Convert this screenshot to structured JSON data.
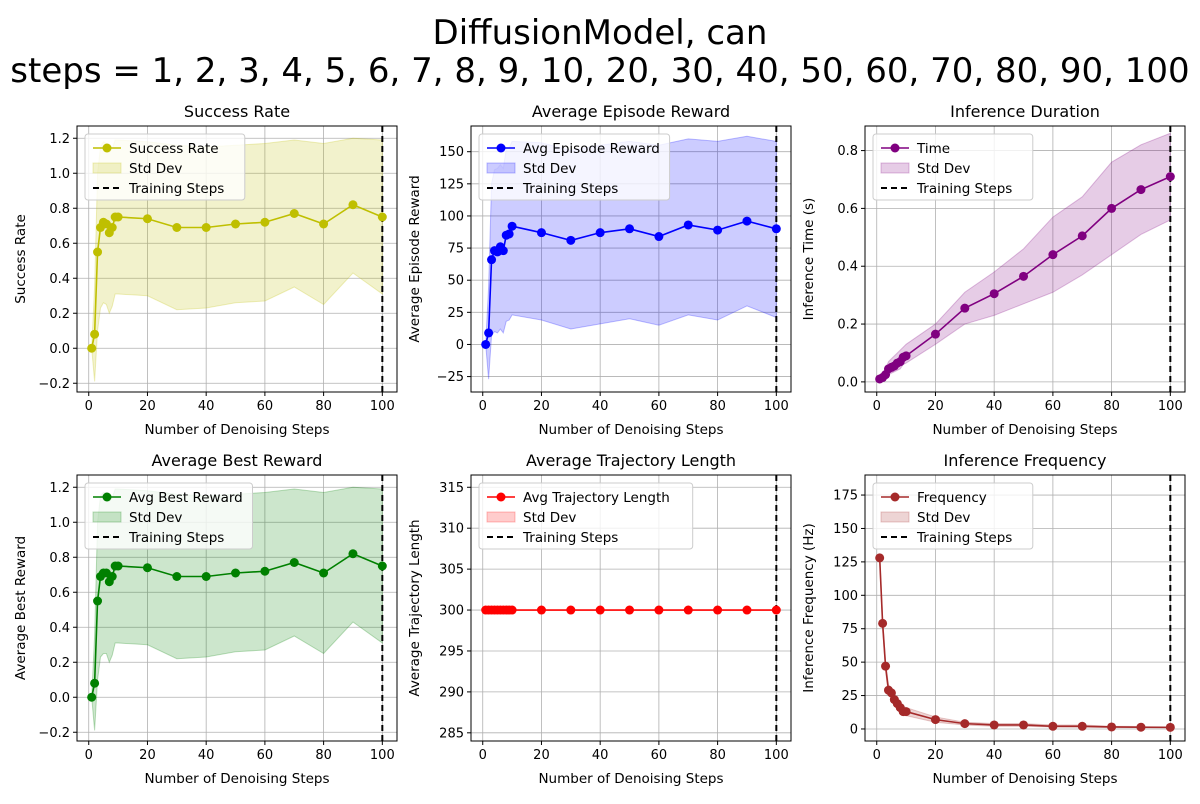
{
  "figure": {
    "title_line1": "DiffusionModel, can",
    "title_line2": "steps = 1, 2, 3, 4, 5, 6, 7, 8, 9, 10, 20, 30, 40, 50, 60, 70, 80, 90, 100"
  },
  "chart_data": [
    {
      "type": "line",
      "title": "Success Rate",
      "xlabel": "Number of Denoising Steps",
      "ylabel": "Success Rate",
      "color": "#bfbf00",
      "xlim": [
        -4,
        105
      ],
      "ylim": [
        -0.25,
        1.27
      ],
      "xticks": [
        0,
        20,
        40,
        60,
        80,
        100
      ],
      "yticks": [
        -0.2,
        0.0,
        0.2,
        0.4,
        0.6,
        0.8,
        1.0,
        1.2
      ],
      "ytick_labels": [
        "−0.2",
        "0.0",
        "0.2",
        "0.4",
        "0.6",
        "0.8",
        "1.0",
        "1.2"
      ],
      "grid": true,
      "legend_position": "upper-left",
      "legend": [
        "Success Rate",
        "Std Dev",
        "Training Steps"
      ],
      "training_steps": 100,
      "x": [
        1,
        2,
        3,
        4,
        5,
        6,
        7,
        8,
        9,
        10,
        20,
        30,
        40,
        50,
        60,
        70,
        80,
        90,
        100
      ],
      "y": [
        0.0,
        0.08,
        0.55,
        0.69,
        0.72,
        0.71,
        0.66,
        0.69,
        0.75,
        0.75,
        0.74,
        0.69,
        0.69,
        0.71,
        0.72,
        0.77,
        0.71,
        0.82,
        0.75
      ],
      "std_upper": [
        0.0,
        0.35,
        1.0,
        1.15,
        1.18,
        1.17,
        1.12,
        1.14,
        1.19,
        1.19,
        1.18,
        1.16,
        1.15,
        1.16,
        1.17,
        1.19,
        1.17,
        1.2,
        1.19
      ],
      "std_lower": [
        0.0,
        -0.19,
        0.1,
        0.23,
        0.26,
        0.25,
        0.2,
        0.24,
        0.31,
        0.31,
        0.3,
        0.22,
        0.23,
        0.26,
        0.27,
        0.35,
        0.25,
        0.43,
        0.31
      ]
    },
    {
      "type": "line",
      "title": "Average Episode Reward",
      "xlabel": "Number of Denoising Steps",
      "ylabel": "Average Episode Reward",
      "color": "#0000ff",
      "xlim": [
        -4,
        105
      ],
      "ylim": [
        -37,
        170
      ],
      "xticks": [
        0,
        20,
        40,
        60,
        80,
        100
      ],
      "yticks": [
        -25,
        0,
        25,
        50,
        75,
        100,
        125,
        150
      ],
      "ytick_labels": [
        "−25",
        "0",
        "25",
        "50",
        "75",
        "100",
        "125",
        "150"
      ],
      "grid": true,
      "legend_position": "upper-left",
      "legend": [
        "Avg Episode Reward",
        "Std Dev",
        "Training Steps"
      ],
      "training_steps": 100,
      "x": [
        1,
        2,
        3,
        4,
        5,
        6,
        7,
        8,
        9,
        10,
        20,
        30,
        40,
        50,
        60,
        70,
        80,
        90,
        100
      ],
      "y": [
        0,
        9,
        66,
        73,
        72,
        76,
        73,
        85,
        86,
        92,
        87,
        81,
        87,
        90,
        84,
        93,
        89,
        96,
        90
      ],
      "std_upper": [
        0,
        45,
        125,
        136,
        137,
        140,
        137,
        152,
        153,
        158,
        157,
        151,
        155,
        158,
        155,
        160,
        158,
        162,
        158
      ],
      "std_lower": [
        0,
        -27,
        7,
        10,
        9,
        12,
        9,
        18,
        19,
        23,
        19,
        12,
        16,
        20,
        15,
        23,
        19,
        30,
        21
      ]
    },
    {
      "type": "line",
      "title": "Inference Duration",
      "xlabel": "Number of Denoising Steps",
      "ylabel": "Inference Time (s)",
      "color": "#800080",
      "xlim": [
        -4,
        105
      ],
      "ylim": [
        -0.035,
        0.885
      ],
      "xticks": [
        0,
        20,
        40,
        60,
        80,
        100
      ],
      "yticks": [
        0.0,
        0.2,
        0.4,
        0.6,
        0.8
      ],
      "ytick_labels": [
        "0.0",
        "0.2",
        "0.4",
        "0.6",
        "0.8"
      ],
      "grid": true,
      "legend_position": "upper-left",
      "legend": [
        "Time",
        "Std Dev",
        "Training Steps"
      ],
      "training_steps": 100,
      "x": [
        1,
        2,
        3,
        4,
        5,
        6,
        7,
        8,
        9,
        10,
        20,
        30,
        40,
        50,
        60,
        70,
        80,
        90,
        100
      ],
      "y": [
        0.01,
        0.015,
        0.025,
        0.045,
        0.05,
        0.055,
        0.065,
        0.07,
        0.085,
        0.09,
        0.165,
        0.255,
        0.305,
        0.365,
        0.44,
        0.505,
        0.6,
        0.665,
        0.71
      ],
      "std_upper": [
        0.02,
        0.03,
        0.045,
        0.07,
        0.08,
        0.09,
        0.1,
        0.11,
        0.12,
        0.13,
        0.2,
        0.31,
        0.38,
        0.46,
        0.57,
        0.64,
        0.76,
        0.82,
        0.86
      ],
      "std_lower": [
        0.0,
        0.005,
        0.01,
        0.025,
        0.03,
        0.035,
        0.04,
        0.045,
        0.06,
        0.065,
        0.13,
        0.2,
        0.23,
        0.27,
        0.31,
        0.37,
        0.44,
        0.51,
        0.56
      ]
    },
    {
      "type": "line",
      "title": "Average Best Reward",
      "xlabel": "Number of Denoising Steps",
      "ylabel": "Average Best Reward",
      "color": "#008000",
      "xlim": [
        -4,
        105
      ],
      "ylim": [
        -0.25,
        1.27
      ],
      "xticks": [
        0,
        20,
        40,
        60,
        80,
        100
      ],
      "yticks": [
        -0.2,
        0.0,
        0.2,
        0.4,
        0.6,
        0.8,
        1.0,
        1.2
      ],
      "ytick_labels": [
        "−0.2",
        "0.0",
        "0.2",
        "0.4",
        "0.6",
        "0.8",
        "1.0",
        "1.2"
      ],
      "grid": true,
      "legend_position": "upper-left",
      "legend": [
        "Avg Best Reward",
        "Std Dev",
        "Training Steps"
      ],
      "training_steps": 100,
      "x": [
        1,
        2,
        3,
        4,
        5,
        6,
        7,
        8,
        9,
        10,
        20,
        30,
        40,
        50,
        60,
        70,
        80,
        90,
        100
      ],
      "y": [
        0.0,
        0.08,
        0.55,
        0.69,
        0.71,
        0.71,
        0.66,
        0.69,
        0.75,
        0.75,
        0.74,
        0.69,
        0.69,
        0.71,
        0.72,
        0.77,
        0.71,
        0.82,
        0.75
      ],
      "std_upper": [
        0.0,
        0.35,
        1.0,
        1.15,
        1.17,
        1.17,
        1.12,
        1.14,
        1.19,
        1.19,
        1.18,
        1.16,
        1.15,
        1.16,
        1.17,
        1.19,
        1.17,
        1.2,
        1.19
      ],
      "std_lower": [
        0.0,
        -0.19,
        0.1,
        0.23,
        0.25,
        0.25,
        0.2,
        0.24,
        0.31,
        0.31,
        0.3,
        0.22,
        0.23,
        0.26,
        0.27,
        0.35,
        0.25,
        0.43,
        0.31
      ]
    },
    {
      "type": "line",
      "title": "Average Trajectory Length",
      "xlabel": "Number of Denoising Steps",
      "ylabel": "Average Trajectory Length",
      "color": "#ff0000",
      "xlim": [
        -4,
        105
      ],
      "ylim": [
        284,
        316.5
      ],
      "xticks": [
        0,
        20,
        40,
        60,
        80,
        100
      ],
      "yticks": [
        285,
        290,
        295,
        300,
        305,
        310,
        315
      ],
      "ytick_labels": [
        "285",
        "290",
        "295",
        "300",
        "305",
        "310",
        "315"
      ],
      "grid": true,
      "legend_position": "upper-left",
      "legend": [
        "Avg Trajectory Length",
        "Std Dev",
        "Training Steps"
      ],
      "training_steps": 100,
      "x": [
        1,
        2,
        3,
        4,
        5,
        6,
        7,
        8,
        9,
        10,
        20,
        30,
        40,
        50,
        60,
        70,
        80,
        90,
        100
      ],
      "y": [
        300,
        300,
        300,
        300,
        300,
        300,
        300,
        300,
        300,
        300,
        300,
        300,
        300,
        300,
        300,
        300,
        300,
        300,
        300
      ],
      "std_upper": [
        300,
        300,
        300,
        300,
        300,
        300,
        300,
        300,
        300,
        300,
        300,
        300,
        300,
        300,
        300,
        300,
        300,
        300,
        300
      ],
      "std_lower": [
        300,
        300,
        300,
        300,
        300,
        300,
        300,
        300,
        300,
        300,
        300,
        300,
        300,
        300,
        300,
        300,
        300,
        300,
        300
      ]
    },
    {
      "type": "line",
      "title": "Inference Frequency",
      "xlabel": "Number of Denoising Steps",
      "ylabel": "Inference Frequency (Hz)",
      "color": "#a52a2a",
      "xlim": [
        -4,
        105
      ],
      "ylim": [
        -9,
        190
      ],
      "xticks": [
        0,
        20,
        40,
        60,
        80,
        100
      ],
      "yticks": [
        0,
        25,
        50,
        75,
        100,
        125,
        150,
        175
      ],
      "ytick_labels": [
        "0",
        "25",
        "50",
        "75",
        "100",
        "125",
        "150",
        "175"
      ],
      "grid": true,
      "legend_position": "upper-left",
      "legend": [
        "Frequency",
        "Std Dev",
        "Training Steps"
      ],
      "training_steps": 100,
      "x": [
        1,
        2,
        3,
        4,
        5,
        6,
        7,
        8,
        9,
        10,
        20,
        30,
        40,
        50,
        60,
        70,
        80,
        90,
        100
      ],
      "y": [
        128,
        79,
        47,
        29,
        27,
        22,
        19,
        16,
        13,
        13,
        7,
        4,
        3,
        3,
        2,
        2,
        1.5,
        1.3,
        1.2
      ],
      "std_upper": [
        130,
        83,
        50,
        33,
        31,
        26,
        23,
        20,
        17,
        16,
        9,
        5,
        4,
        4,
        3,
        3,
        2,
        1.8,
        1.6
      ],
      "std_lower": [
        126,
        75,
        44,
        25,
        23,
        18,
        15,
        12,
        10,
        10,
        5,
        3,
        2,
        2,
        1.5,
        1.4,
        1,
        0.9,
        0.8
      ]
    }
  ]
}
